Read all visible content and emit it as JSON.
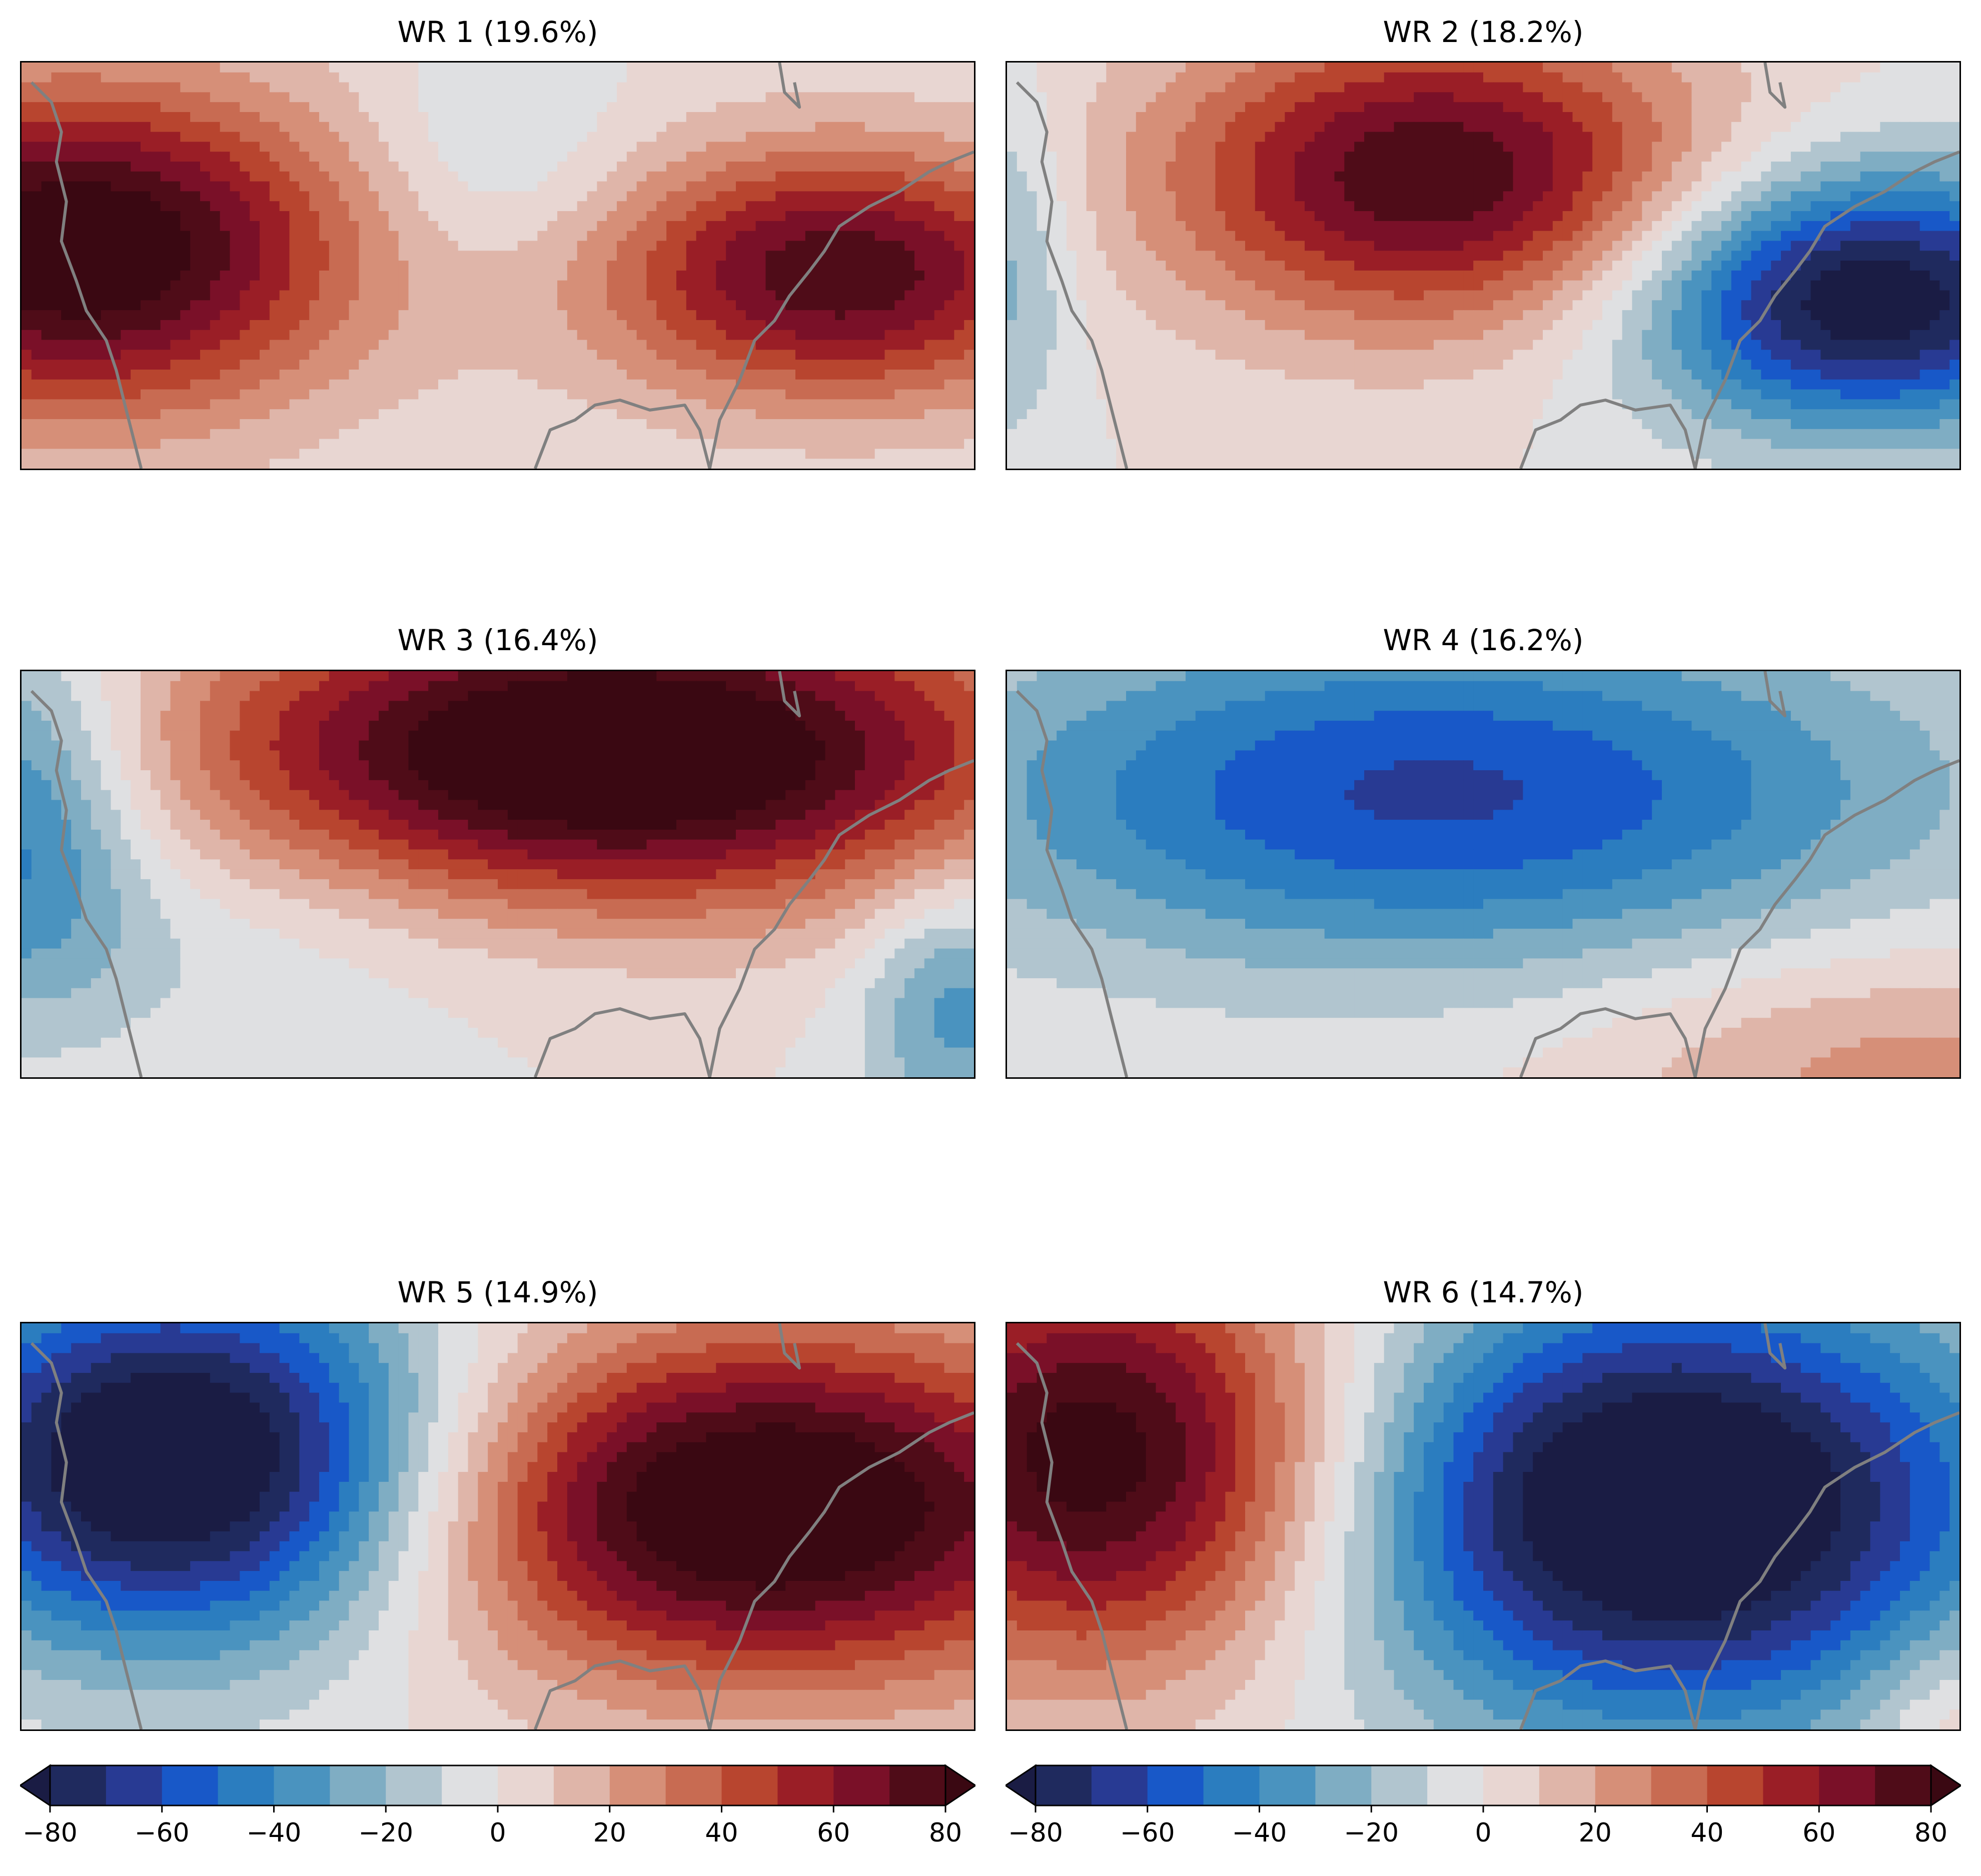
{
  "panels": [
    {
      "title": "WR 1 (19.6%)"
    },
    {
      "title": "WR 2 (18.2%)"
    },
    {
      "title": "WR 3 (16.4%)"
    },
    {
      "title": "WR 4 (16.2%)"
    },
    {
      "title": "WR 5 (14.9%)"
    },
    {
      "title": "WR 6 (14.7%)"
    }
  ],
  "colorbar": {
    "levels": [
      -80,
      -70,
      -60,
      -50,
      -40,
      -30,
      -20,
      -10,
      0,
      10,
      20,
      30,
      40,
      50,
      60,
      70,
      80
    ],
    "ticks": [
      "−80",
      "−60",
      "−40",
      "−20",
      "0",
      "20",
      "40",
      "60",
      "80"
    ],
    "extend": "both",
    "colors": [
      "#1a1c44",
      "#1f2a5e",
      "#283a93",
      "#1858c8",
      "#2b7dbf",
      "#4a93bf",
      "#7fadc3",
      "#b1c5cf",
      "#dfe0e2",
      "#e8d6d2",
      "#dfb5a9",
      "#d68f78",
      "#c86b52",
      "#b8452f",
      "#9a1e26",
      "#7a1028",
      "#4f0c18",
      "#3a0812"
    ]
  },
  "coastline_color": "#808080"
}
